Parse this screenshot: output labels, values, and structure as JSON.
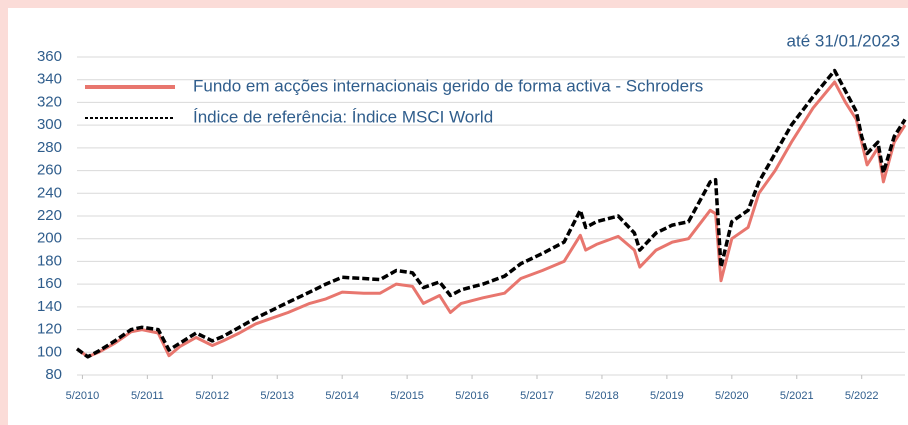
{
  "chart_data": {
    "type": "line",
    "subtitle": "até 31/01/2023",
    "x": [
      "2010-04",
      "2010-06",
      "2010-08",
      "2010-11",
      "2011-02",
      "2011-04",
      "2011-07",
      "2011-09",
      "2011-11",
      "2012-02",
      "2012-05",
      "2012-07",
      "2012-10",
      "2013-01",
      "2013-04",
      "2013-07",
      "2013-11",
      "2014-02",
      "2014-05",
      "2014-09",
      "2014-12",
      "2015-03",
      "2015-06",
      "2015-08",
      "2015-11",
      "2016-01",
      "2016-03",
      "2016-07",
      "2016-11",
      "2017-02",
      "2017-06",
      "2017-10",
      "2018-01",
      "2018-02",
      "2018-04",
      "2018-08",
      "2018-11",
      "2018-12",
      "2019-03",
      "2019-06",
      "2019-09",
      "2020-01",
      "2020-02",
      "2020-03",
      "2020-05",
      "2020-08",
      "2020-10",
      "2021-01",
      "2021-04",
      "2021-08",
      "2021-12",
      "2022-02",
      "2022-04",
      "2022-05",
      "2022-06",
      "2022-08",
      "2022-09",
      "2022-11",
      "2023-01"
    ],
    "series": [
      {
        "name": "Fundo em acções internacionais gerido de forma activa - Schroders",
        "color": "#e8766e",
        "style": "solid",
        "values": [
          103,
          96,
          100,
          108,
          118,
          120,
          117,
          97,
          105,
          113,
          106,
          110,
          117,
          125,
          130,
          135,
          143,
          147,
          153,
          152,
          152,
          160,
          158,
          143,
          150,
          135,
          143,
          148,
          152,
          165,
          172,
          180,
          203,
          190,
          195,
          202,
          190,
          175,
          190,
          197,
          200,
          225,
          222,
          163,
          200,
          210,
          240,
          260,
          285,
          315,
          338,
          320,
          305,
          285,
          265,
          280,
          250,
          285,
          300
        ]
      },
      {
        "name": "Índice de referência: Índice MSCI World",
        "color": "#000000",
        "style": "dashed",
        "values": [
          103,
          96,
          101,
          110,
          120,
          122,
          120,
          102,
          108,
          117,
          110,
          114,
          122,
          130,
          137,
          144,
          153,
          160,
          166,
          165,
          164,
          172,
          170,
          157,
          162,
          150,
          155,
          160,
          167,
          178,
          187,
          197,
          225,
          210,
          215,
          220,
          205,
          190,
          205,
          212,
          215,
          250,
          252,
          175,
          215,
          225,
          250,
          275,
          300,
          325,
          348,
          330,
          312,
          290,
          275,
          285,
          258,
          290,
          305
        ]
      }
    ],
    "xlim": [
      "2010-04",
      "2023-01"
    ],
    "xticks": [
      {
        "value": "2010-05",
        "label": "5/2010"
      },
      {
        "value": "2011-05",
        "label": "5/2011"
      },
      {
        "value": "2012-05",
        "label": "5/2012"
      },
      {
        "value": "2013-05",
        "label": "5/2013"
      },
      {
        "value": "2014-05",
        "label": "5/2014"
      },
      {
        "value": "2015-05",
        "label": "5/2015"
      },
      {
        "value": "2016-05",
        "label": "5/2016"
      },
      {
        "value": "2017-05",
        "label": "5/2017"
      },
      {
        "value": "2018-05",
        "label": "5/2018"
      },
      {
        "value": "2019-05",
        "label": "5/2019"
      },
      {
        "value": "2020-05",
        "label": "5/2020"
      },
      {
        "value": "2021-05",
        "label": "5/2021"
      },
      {
        "value": "2022-05",
        "label": "5/2022"
      }
    ],
    "ylim": [
      80,
      360
    ],
    "yticks": [
      80,
      100,
      120,
      140,
      160,
      180,
      200,
      220,
      240,
      260,
      280,
      300,
      320,
      340,
      360
    ],
    "grid": true
  }
}
